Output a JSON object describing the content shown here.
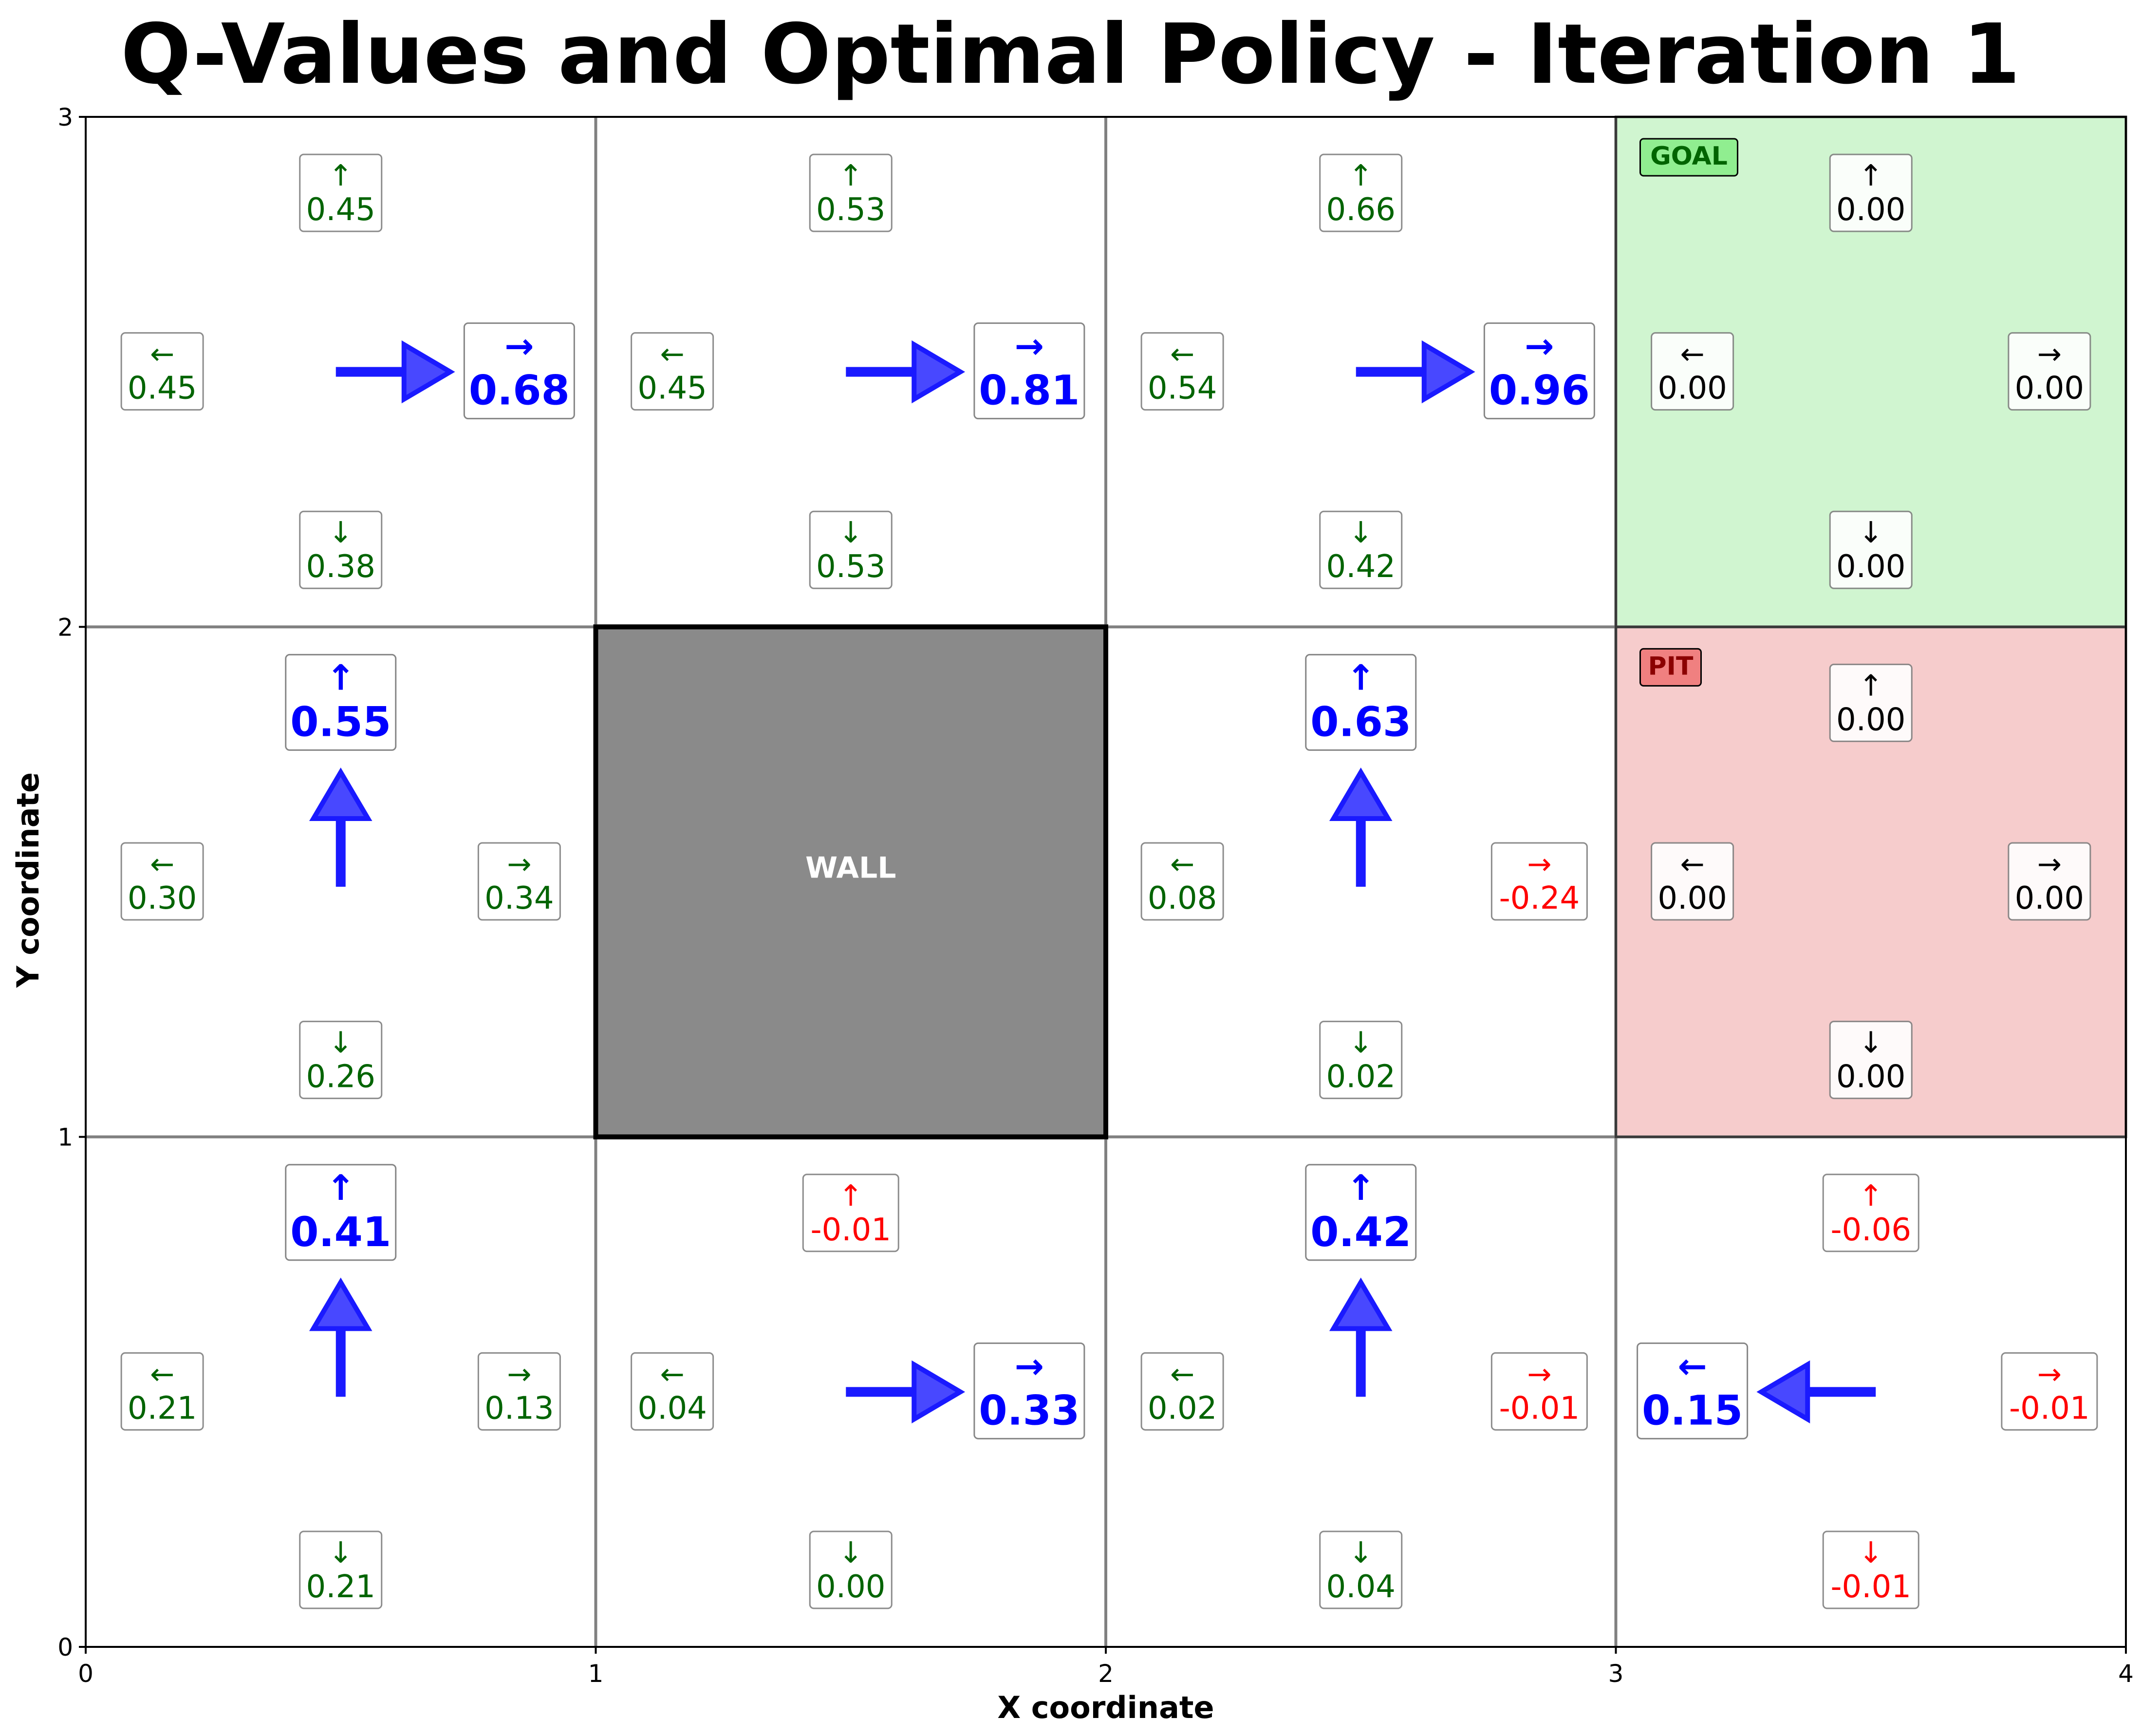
{
  "title": "Q-Values and Optimal Policy - Iteration 1",
  "colors": {
    "positive": "#006400",
    "negative": "#ff0000",
    "zero": "#000000",
    "best": "#0000ff",
    "arrow": "#1a1aff",
    "goal_fill": "#d0f5d0",
    "pit_fill": "#f6cccc",
    "goal_tag": "#90ee90",
    "pit_tag": "#f08080",
    "wall": "#8a8a8a",
    "grid": "#808080"
  },
  "chart_data": {
    "type": "gridworld",
    "xlabel": "X coordinate",
    "ylabel": "Y coordinate",
    "xlim": [
      0,
      4
    ],
    "ylim": [
      0,
      3
    ],
    "xticks": [
      "0",
      "1",
      "2",
      "3",
      "4"
    ],
    "yticks": [
      "0",
      "1",
      "2",
      "3"
    ],
    "special_cells": [
      {
        "x": 3,
        "y": 2,
        "kind": "goal",
        "label": "GOAL"
      },
      {
        "x": 3,
        "y": 1,
        "kind": "pit",
        "label": "PIT"
      },
      {
        "x": 1,
        "y": 1,
        "kind": "wall",
        "label": "WALL"
      }
    ],
    "cells": [
      {
        "x": 0,
        "y": 2,
        "best": "right",
        "q": {
          "up": "0.45",
          "left": "0.45",
          "right": "0.68",
          "down": "0.38"
        }
      },
      {
        "x": 1,
        "y": 2,
        "best": "right",
        "q": {
          "up": "0.53",
          "left": "0.45",
          "right": "0.81",
          "down": "0.53"
        }
      },
      {
        "x": 2,
        "y": 2,
        "best": "right",
        "q": {
          "up": "0.66",
          "left": "0.54",
          "right": "0.96",
          "down": "0.42"
        }
      },
      {
        "x": 3,
        "y": 2,
        "best": null,
        "q": {
          "up": "0.00",
          "left": "0.00",
          "right": "0.00",
          "down": "0.00"
        }
      },
      {
        "x": 0,
        "y": 1,
        "best": "up",
        "q": {
          "up": "0.55",
          "left": "0.30",
          "right": "0.34",
          "down": "0.26"
        }
      },
      {
        "x": 2,
        "y": 1,
        "best": "up",
        "q": {
          "up": "0.63",
          "left": "0.08",
          "right": "-0.24",
          "down": "0.02"
        }
      },
      {
        "x": 3,
        "y": 1,
        "best": null,
        "q": {
          "up": "0.00",
          "left": "0.00",
          "right": "0.00",
          "down": "0.00"
        }
      },
      {
        "x": 0,
        "y": 0,
        "best": "up",
        "q": {
          "up": "0.41",
          "left": "0.21",
          "right": "0.13",
          "down": "0.21"
        }
      },
      {
        "x": 1,
        "y": 0,
        "best": "right",
        "q": {
          "up": "-0.01",
          "left": "0.04",
          "right": "0.33",
          "down": "0.00"
        }
      },
      {
        "x": 2,
        "y": 0,
        "best": "up",
        "q": {
          "up": "0.42",
          "left": "0.02",
          "right": "-0.01",
          "down": "0.04"
        }
      },
      {
        "x": 3,
        "y": 0,
        "best": "left",
        "q": {
          "up": "-0.06",
          "left": "0.15",
          "right": "-0.01",
          "down": "-0.01"
        }
      }
    ]
  }
}
